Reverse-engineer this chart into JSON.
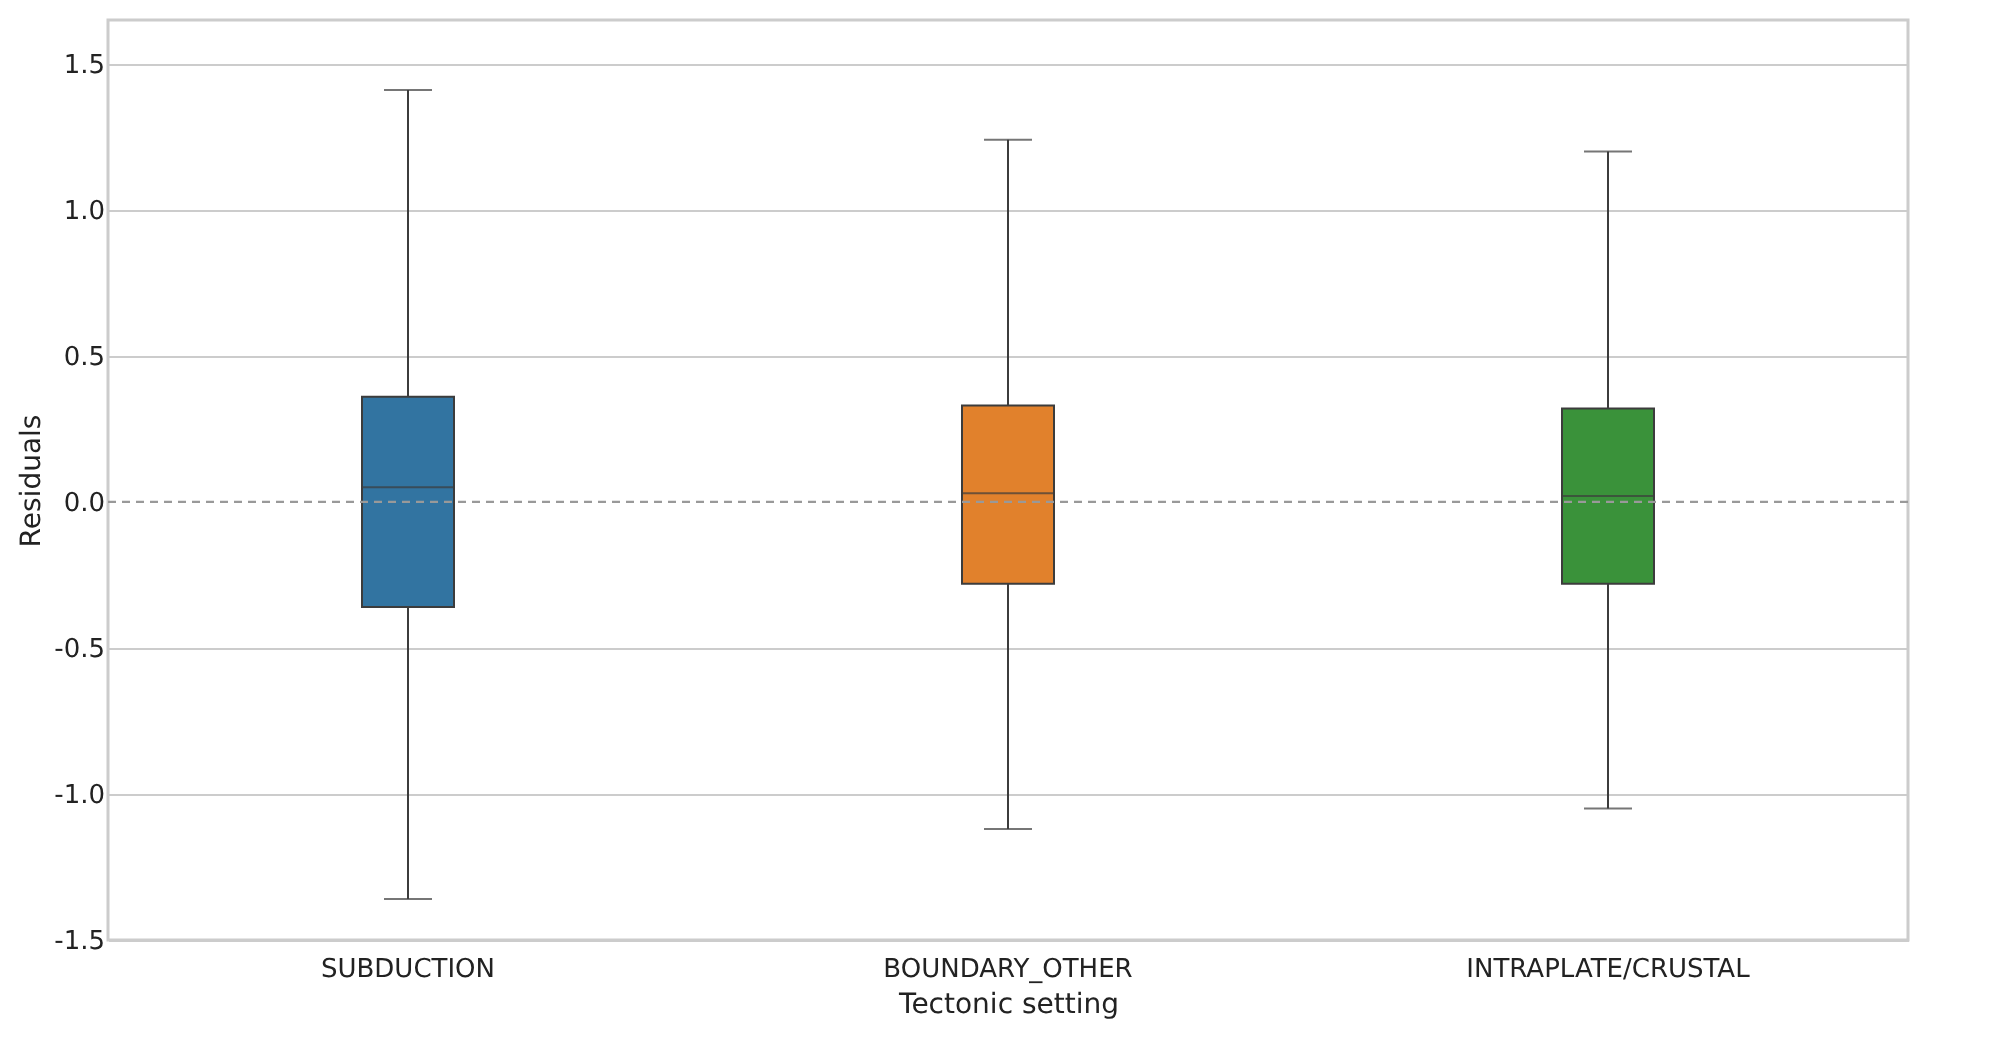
{
  "chart_data": {
    "type": "box",
    "xlabel": "Tectonic setting",
    "ylabel": "Residuals",
    "categories": [
      "SUBDUCTION",
      "BOUNDARY_OTHER",
      "INTRAPLATE/CRUSTAL"
    ],
    "colors": [
      "#3274a1",
      "#e1812c",
      "#3a923a"
    ],
    "boxes": [
      {
        "low": -1.36,
        "q1": -0.36,
        "median": 0.05,
        "q3": 0.36,
        "high": 1.41
      },
      {
        "low": -1.12,
        "q1": -0.28,
        "median": 0.03,
        "q3": 0.33,
        "high": 1.24
      },
      {
        "low": -1.05,
        "q1": -0.28,
        "median": 0.02,
        "q3": 0.32,
        "high": 1.2
      }
    ],
    "ylim": [
      -1.5,
      1.65
    ],
    "yticks": [
      -1.5,
      {
        "value": -1,
        "label": "-1.0"
      },
      -0.5,
      {
        "value": 0,
        "label": "0.0"
      },
      0.5,
      {
        "value": 1,
        "label": "1.0"
      },
      1.5
    ],
    "grid": "y",
    "ref_lines": [
      {
        "axis": "y",
        "value": 0,
        "color": "#999999",
        "line_style": "dashed"
      }
    ]
  }
}
